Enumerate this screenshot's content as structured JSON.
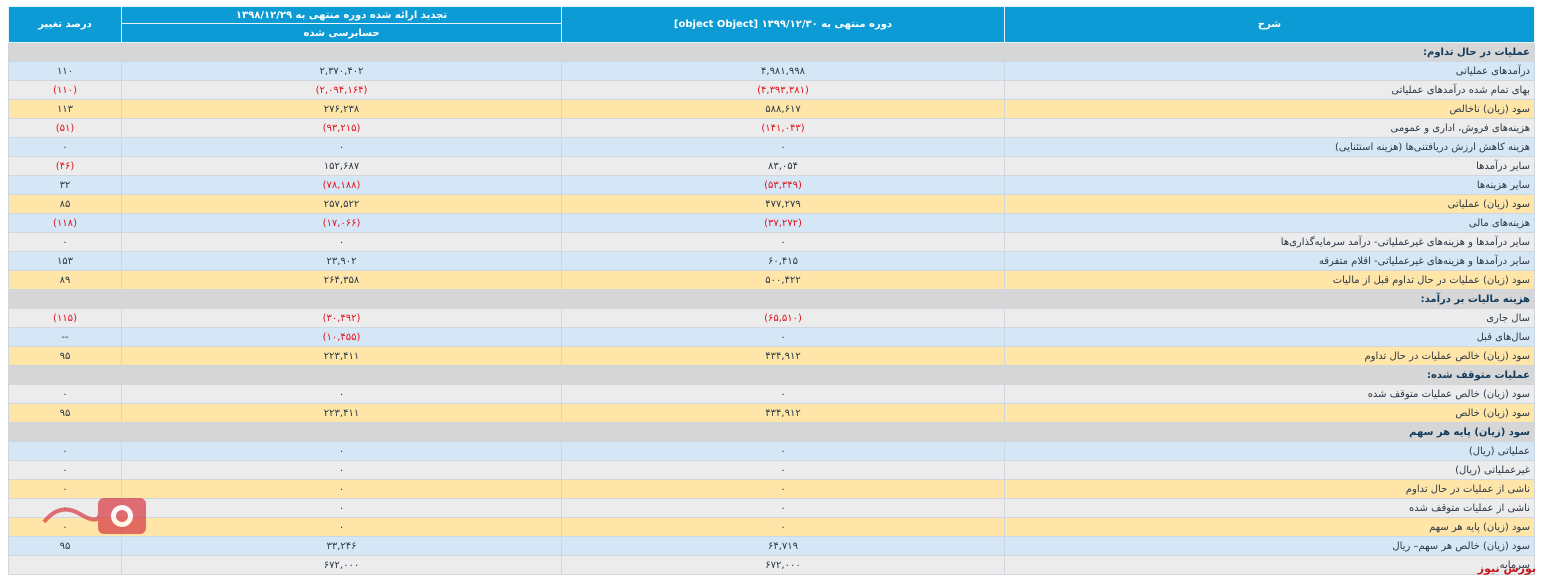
{
  "header": {
    "description": "شرح",
    "current_period": "دوره منتهی به ۱۳۹۹/۱۲/۳۰ [object Object]",
    "previous_period": "تجدید ارائه شده دوره منتهی به ۱۳۹۸/۱۲/۲۹",
    "audited": "حسابرسی شده",
    "change_pct": "درصد تغییر"
  },
  "rows": [
    {
      "type": "section",
      "label": "عملیات در حال تداوم:",
      "cur": "",
      "prev": "",
      "pct": ""
    },
    {
      "type": "blue",
      "label": "درآمدهای عملیاتی",
      "cur": "۴,۹۸۱,۹۹۸",
      "prev": "۲,۳۷۰,۴۰۲",
      "pct": "۱۱۰"
    },
    {
      "type": "gray",
      "label": "بهای تمام شده درآمدهای عملیاتی",
      "cur": "(۴,۳۹۳,۳۸۱)",
      "prev": "(۲,۰۹۴,۱۶۴)",
      "pct": "(۱۱۰)"
    },
    {
      "type": "yellow",
      "label": "سود (زیان) ناخالص",
      "cur": "۵۸۸,۶۱۷",
      "prev": "۲۷۶,۲۳۸",
      "pct": "۱۱۳"
    },
    {
      "type": "gray",
      "label": "هزینه‌های فروش، اداری و عمومی",
      "cur": "(۱۴۱,۰۴۳)",
      "prev": "(۹۳,۲۱۵)",
      "pct": "(۵۱)"
    },
    {
      "type": "blue",
      "label": "هزینه کاهش ارزش دریافتنی‌ها (هزینه استثنایی)",
      "cur": "۰",
      "prev": "۰",
      "pct": "۰"
    },
    {
      "type": "gray",
      "label": "سایر درآمدها",
      "cur": "۸۳,۰۵۴",
      "prev": "۱۵۲,۶۸۷",
      "pct": "(۴۶)"
    },
    {
      "type": "blue",
      "label": "سایر هزینه‌ها",
      "cur": "(۵۳,۳۴۹)",
      "prev": "(۷۸,۱۸۸)",
      "pct": "۳۲"
    },
    {
      "type": "yellow",
      "label": "سود (زیان) عملیاتی",
      "cur": "۴۷۷,۲۷۹",
      "prev": "۲۵۷,۵۲۲",
      "pct": "۸۵"
    },
    {
      "type": "blue",
      "label": "هزینه‌های مالی",
      "cur": "(۳۷,۲۷۲)",
      "prev": "(۱۷,۰۶۶)",
      "pct": "(۱۱۸)"
    },
    {
      "type": "gray",
      "label": "سایر درآمدها و هزینه‌های غیرعملیاتی- درآمد سرمایه‌گذاری‌ها",
      "cur": "۰",
      "prev": "۰",
      "pct": "۰"
    },
    {
      "type": "blue",
      "label": "سایر درآمدها و هزینه‌های غیرعملیاتی- اقلام متفرقه",
      "cur": "۶۰,۴۱۵",
      "prev": "۲۳,۹۰۲",
      "pct": "۱۵۳"
    },
    {
      "type": "yellow",
      "label": "سود (زیان) عملیات در حال تداوم قبل از مالیات",
      "cur": "۵۰۰,۴۲۲",
      "prev": "۲۶۴,۳۵۸",
      "pct": "۸۹"
    },
    {
      "type": "section",
      "label": "هزینه مالیات بر درآمد:",
      "cur": "",
      "prev": "",
      "pct": ""
    },
    {
      "type": "gray",
      "label": "سال جاری",
      "cur": "(۶۵,۵۱۰)",
      "prev": "(۳۰,۴۹۲)",
      "pct": "(۱۱۵)"
    },
    {
      "type": "blue",
      "label": "سال‌های قبل",
      "cur": "۰",
      "prev": "(۱۰,۴۵۵)",
      "pct": "--"
    },
    {
      "type": "yellow",
      "label": "سود (زیان) خالص عملیات در حال تداوم",
      "cur": "۴۳۴,۹۱۲",
      "prev": "۲۲۳,۴۱۱",
      "pct": "۹۵"
    },
    {
      "type": "section",
      "label": "عملیات متوقف شده:",
      "cur": "",
      "prev": "",
      "pct": ""
    },
    {
      "type": "gray",
      "label": "سود (زیان) خالص عملیات متوقف شده",
      "cur": "۰",
      "prev": "۰",
      "pct": "۰"
    },
    {
      "type": "yellow",
      "label": "سود (زیان) خالص",
      "cur": "۴۳۴,۹۱۲",
      "prev": "۲۲۳,۴۱۱",
      "pct": "۹۵"
    },
    {
      "type": "section",
      "label": "سود (زیان) پایه هر سهم",
      "cur": "",
      "prev": "",
      "pct": ""
    },
    {
      "type": "blue",
      "label": "عملیاتی (ریال)",
      "cur": "۰",
      "prev": "۰",
      "pct": "۰"
    },
    {
      "type": "gray",
      "label": "غیرعملیاتی (ریال)",
      "cur": "۰",
      "prev": "۰",
      "pct": "۰"
    },
    {
      "type": "yellow",
      "label": "ناشی از عملیات در حال تداوم",
      "cur": "۰",
      "prev": "۰",
      "pct": "۰"
    },
    {
      "type": "gray",
      "label": "ناشی از عملیات متوقف شده",
      "cur": "۰",
      "prev": "۰",
      "pct": "۰"
    },
    {
      "type": "yellow",
      "label": "سود (زیان) پایه هر سهم",
      "cur": "۰",
      "prev": "۰",
      "pct": "۰"
    },
    {
      "type": "blue",
      "label": "سود (زیان) خالص هر سهم– ریال",
      "cur": "۶۴,۷۱۹",
      "prev": "۳۳,۲۴۶",
      "pct": "۹۵"
    },
    {
      "type": "gray",
      "label": "سرمایه",
      "cur": "۶۷۲,۰۰۰",
      "prev": "۶۷۲,۰۰۰",
      "pct": ""
    }
  ],
  "brand_text": "بورس نیوز",
  "colors": {
    "header": "#0c9bd4",
    "negative": "#e0151b",
    "blue_row": "#d5e6f6",
    "yellow_row": "#ffe6a8",
    "section_row": "#d6d6d6"
  },
  "watermark_icon": "bourse-news-logo"
}
